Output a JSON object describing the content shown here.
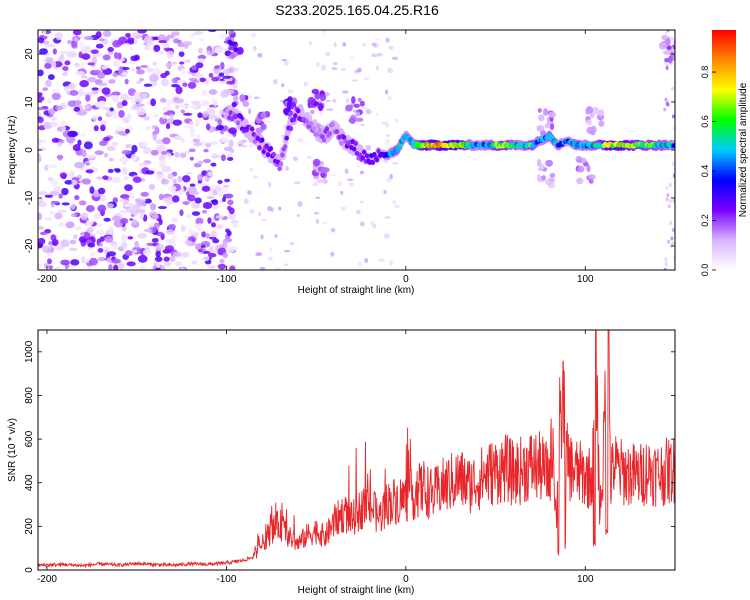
{
  "title": "S233.2025.165.04.25.R16",
  "colors": {
    "snr_line": "#e8262a",
    "noise_dot": "#d9c6ff",
    "noise_dot_dark": "#7a22ee",
    "signal_core": "#ff2a2a",
    "signal_mid": "#1fa8ff",
    "signal_edge": "#3b18f0"
  },
  "chart_data": [
    {
      "type": "heatmap",
      "xlabel": "Height of straight line (km)",
      "ylabel": "Frequency (Hz)",
      "xlim": [
        -205,
        150
      ],
      "ylim": [
        -25,
        25
      ],
      "xticks": [
        -200,
        -100,
        0,
        100
      ],
      "xtick_labels": [
        "-200",
        "-100",
        "0",
        "100"
      ],
      "yticks": [
        20,
        10,
        0,
        -10,
        -20
      ],
      "ytick_labels": [
        "20",
        "10",
        "0",
        "-10",
        "-20"
      ],
      "grid": false,
      "colorbar": {
        "label": "Normalized spectral amplitude",
        "range": [
          0,
          0.97
        ],
        "ticks": [
          0.0,
          0.2,
          0.4,
          0.6,
          0.8
        ],
        "tick_labels": [
          "0.0",
          "0.2",
          "0.4",
          "0.6",
          "0.8"
        ],
        "colormap": [
          "#ffffff",
          "#d9b3ff",
          "#7a00ff",
          "#0000ff",
          "#00ccff",
          "#00ff00",
          "#ffff00",
          "#ff8800",
          "#ff0000"
        ]
      },
      "noise_region_x": [
        -205,
        -95
      ],
      "signal_ridge": {
        "x": [
          -100,
          -95,
          -90,
          -85,
          -80,
          -75,
          -70,
          -65,
          -60,
          -55,
          -50,
          -45,
          -40,
          -35,
          -30,
          -25,
          -20,
          -15,
          -10,
          -5,
          0,
          5,
          10,
          15,
          20,
          25,
          30,
          35,
          40,
          45,
          50,
          55,
          60,
          65,
          70,
          75,
          80,
          85,
          90,
          95,
          100,
          105,
          110,
          115,
          120,
          125,
          130,
          135,
          140,
          145,
          150
        ],
        "freq": [
          8,
          7,
          5,
          3,
          1,
          -1,
          -3,
          5,
          8,
          6,
          4,
          3,
          5,
          2,
          1,
          -1,
          -2,
          -1,
          -1,
          0,
          3,
          1,
          1,
          1,
          1,
          1,
          1,
          1,
          1,
          1,
          1,
          1,
          1,
          1,
          1,
          2,
          3,
          1,
          2,
          1,
          1,
          1,
          1,
          1,
          1,
          1,
          1,
          1,
          1,
          1,
          1
        ],
        "amplitude": [
          0.2,
          0.25,
          0.3,
          0.25,
          0.3,
          0.3,
          0.25,
          0.3,
          0.25,
          0.25,
          0.2,
          0.25,
          0.2,
          0.25,
          0.3,
          0.25,
          0.35,
          0.3,
          0.5,
          0.6,
          0.5,
          0.55,
          0.85,
          0.9,
          0.95,
          0.95,
          0.9,
          0.6,
          0.5,
          0.55,
          0.7,
          0.75,
          0.6,
          0.55,
          0.7,
          0.5,
          0.6,
          0.55,
          0.45,
          0.6,
          0.55,
          0.6,
          0.75,
          0.9,
          0.85,
          0.8,
          0.7,
          0.7,
          0.65,
          0.6,
          0.5
        ]
      },
      "signal_features": [
        {
          "x": -96,
          "freq": 22,
          "amplitude": 0.3
        },
        {
          "x": -93,
          "freq": 8.5,
          "amplitude": 0.25
        },
        {
          "x": -80,
          "freq": 5,
          "amplitude": 0.25
        },
        {
          "x": -63,
          "freq": 9,
          "amplitude": 0.3
        },
        {
          "x": -50,
          "freq": 10,
          "amplitude": 0.25
        },
        {
          "x": -48,
          "freq": -5,
          "amplitude": 0.2
        },
        {
          "x": -28,
          "freq": 8,
          "amplitude": 0.2
        },
        {
          "x": 78,
          "freq": 6,
          "amplitude": 0.2
        },
        {
          "x": 78,
          "freq": -5,
          "amplitude": 0.15
        },
        {
          "x": 100,
          "freq": -4,
          "amplitude": 0.2
        },
        {
          "x": 105,
          "freq": 6,
          "amplitude": 0.15
        },
        {
          "x": 147,
          "freq": 21,
          "amplitude": 0.2
        }
      ]
    },
    {
      "type": "line",
      "xlabel": "Height of straight line (km)",
      "ylabel": "SNR (10 * v/v)",
      "xlim": [
        -205,
        150
      ],
      "ylim": [
        0,
        1100
      ],
      "xticks": [
        -200,
        -100,
        0,
        100
      ],
      "xtick_labels": [
        "-200",
        "-100",
        "0",
        "100"
      ],
      "yticks": [
        0,
        200,
        400,
        600,
        800,
        1000
      ],
      "ytick_labels": [
        "0",
        "200",
        "400",
        "600",
        "800",
        "1000"
      ],
      "grid": false,
      "series": [
        {
          "x": [
            -205,
            -190,
            -180,
            -170,
            -160,
            -150,
            -140,
            -130,
            -120,
            -110,
            -100,
            -90,
            -85,
            -80,
            -75,
            -70,
            -65,
            -60,
            -55,
            -50,
            -45,
            -40,
            -35,
            -30,
            -25,
            -20,
            -15,
            -10,
            -5,
            0,
            5,
            10,
            15,
            20,
            25,
            30,
            35,
            40,
            45,
            50,
            55,
            60,
            65,
            70,
            75,
            80,
            82,
            84,
            85,
            86,
            88,
            90,
            92,
            95,
            100,
            104,
            106,
            108,
            110,
            112,
            113,
            114,
            116,
            120,
            125,
            130,
            135,
            140,
            145,
            150
          ],
          "y": [
            22,
            25,
            20,
            28,
            22,
            30,
            25,
            22,
            28,
            26,
            32,
            45,
            60,
            120,
            180,
            210,
            150,
            120,
            160,
            180,
            150,
            220,
            260,
            230,
            280,
            300,
            240,
            310,
            320,
            330,
            350,
            380,
            340,
            380,
            400,
            420,
            390,
            410,
            440,
            450,
            470,
            440,
            460,
            480,
            470,
            430,
            620,
            180,
            860,
            600,
            820,
            500,
            470,
            450,
            430,
            420,
            1030,
            260,
            480,
            1000,
            1150,
            400,
            480,
            450,
            440,
            430,
            460,
            440,
            450,
            460
          ],
          "spikes_down": [
            {
              "x": 85,
              "y": 60
            },
            {
              "x": 89,
              "y": 90
            },
            {
              "x": 105,
              "y": 100
            },
            {
              "x": 112,
              "y": 160
            }
          ]
        }
      ]
    }
  ]
}
